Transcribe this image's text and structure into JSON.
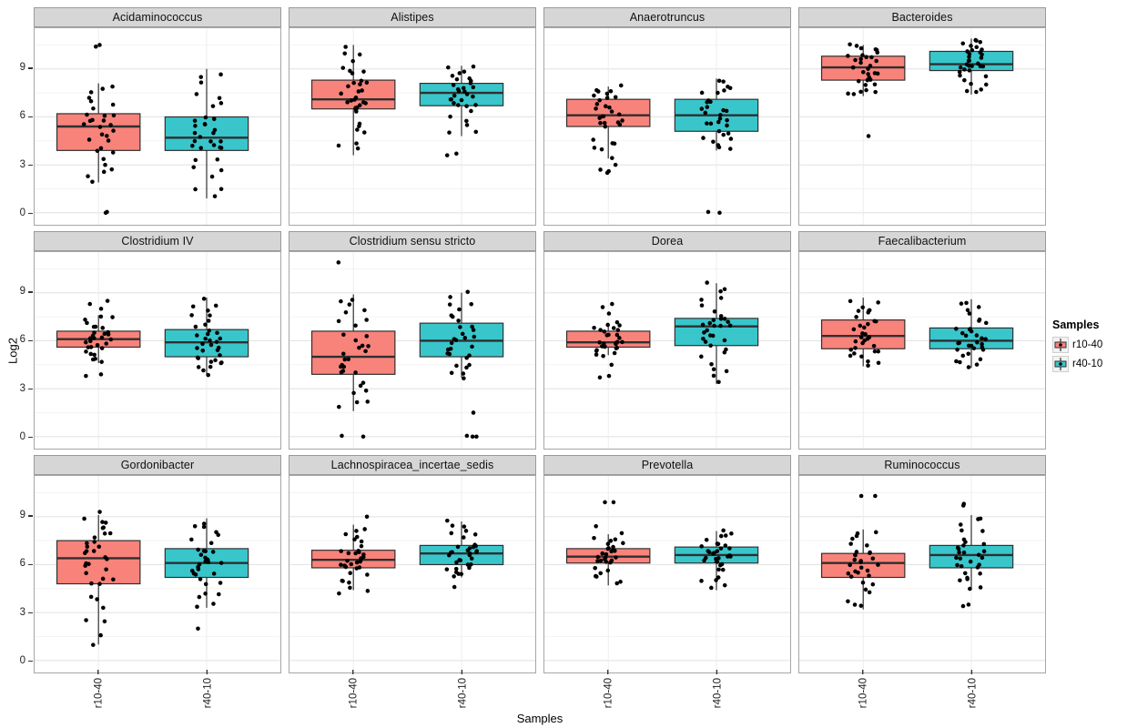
{
  "figure": {
    "y_axis_title": "Log2",
    "x_axis_title": "Samples",
    "legend": {
      "title": "Samples",
      "entries": [
        {
          "label": "r10-40",
          "color": "#F8837B"
        },
        {
          "label": "r40-10",
          "color": "#38C6CB"
        }
      ]
    }
  },
  "chart_data": {
    "type": "boxplot-faceted",
    "facet_rows": 3,
    "facet_cols": 4,
    "x_categories": [
      "r10-40",
      "r40-10"
    ],
    "series_colors": {
      "r10-40": "#F8837B",
      "r40-10": "#38C6CB"
    },
    "point_color": "#000000",
    "ylabel": "Log2",
    "xlabel": "Samples",
    "y_ticks": [
      0,
      3,
      6,
      9
    ],
    "y_minor_ticks": [
      1.5,
      4.5,
      7.5,
      10.5
    ],
    "ylim": [
      -0.75,
      11.55
    ],
    "grid": true,
    "legend_position": "right",
    "facets": [
      {
        "title": "Acidaminococcus",
        "groups": [
          {
            "name": "r10-40",
            "whisker_low": 1.9,
            "q1": 3.9,
            "median": 5.4,
            "q3": 6.2,
            "whisker_high": 8.1,
            "outliers": [
              10.5,
              10.4,
              0,
              0.05
            ],
            "n_points": 30
          },
          {
            "name": "r40-10",
            "whisker_low": 0.9,
            "q1": 3.9,
            "median": 4.7,
            "q3": 6.0,
            "whisker_high": 9.0,
            "outliers": [],
            "n_points": 33
          }
        ]
      },
      {
        "title": "Alistipes",
        "groups": [
          {
            "name": "r10-40",
            "whisker_low": 3.6,
            "q1": 6.5,
            "median": 7.1,
            "q3": 8.3,
            "whisker_high": 10.5,
            "outliers": [],
            "n_points": 34
          },
          {
            "name": "r40-10",
            "whisker_low": 4.8,
            "q1": 6.7,
            "median": 7.5,
            "q3": 8.1,
            "whisker_high": 9.2,
            "outliers": [
              3.7,
              3.6
            ],
            "n_points": 31
          }
        ]
      },
      {
        "title": "Anaerotruncus",
        "groups": [
          {
            "name": "r10-40",
            "whisker_low": 3.4,
            "q1": 5.4,
            "median": 6.1,
            "q3": 7.1,
            "whisker_high": 7.9,
            "outliers": [
              3.0,
              2.7,
              2.6,
              2.5
            ],
            "n_points": 30
          },
          {
            "name": "r40-10",
            "whisker_low": 3.9,
            "q1": 5.1,
            "median": 6.1,
            "q3": 7.1,
            "whisker_high": 8.4,
            "outliers": [
              0,
              0.05
            ],
            "n_points": 31
          }
        ]
      },
      {
        "title": "Bacteroides",
        "groups": [
          {
            "name": "r10-40",
            "whisker_low": 7.3,
            "q1": 8.3,
            "median": 9.1,
            "q3": 9.8,
            "whisker_high": 10.5,
            "outliers": [
              4.8
            ],
            "n_points": 33
          },
          {
            "name": "r40-10",
            "whisker_low": 7.4,
            "q1": 8.9,
            "median": 9.3,
            "q3": 10.1,
            "whisker_high": 10.9,
            "outliers": [],
            "n_points": 34
          }
        ]
      },
      {
        "title": "Clostridium IV",
        "groups": [
          {
            "name": "r10-40",
            "whisker_low": 4.6,
            "q1": 5.6,
            "median": 6.1,
            "q3": 6.6,
            "whisker_high": 7.6,
            "outliers": [
              8.5,
              8.3,
              8.0,
              3.9,
              3.8
            ],
            "n_points": 29
          },
          {
            "name": "r40-10",
            "whisker_low": 3.9,
            "q1": 5.0,
            "median": 5.9,
            "q3": 6.7,
            "whisker_high": 8.7,
            "outliers": [],
            "n_points": 34
          }
        ]
      },
      {
        "title": "Clostridium sensu stricto",
        "groups": [
          {
            "name": "r10-40",
            "whisker_low": 1.6,
            "q1": 3.9,
            "median": 5.0,
            "q3": 6.6,
            "whisker_high": 8.9,
            "outliers": [
              10.9,
              0,
              0.05
            ],
            "n_points": 31
          },
          {
            "name": "r40-10",
            "whisker_low": 3.7,
            "q1": 5.0,
            "median": 6.0,
            "q3": 7.1,
            "whisker_high": 9.0,
            "outliers": [
              1.5,
              0,
              0,
              0.05
            ],
            "n_points": 30
          }
        ]
      },
      {
        "title": "Dorea",
        "groups": [
          {
            "name": "r10-40",
            "whisker_low": 5.1,
            "q1": 5.6,
            "median": 5.9,
            "q3": 6.6,
            "whisker_high": 7.1,
            "outliers": [
              8.3,
              8.1,
              7.7,
              4.5,
              3.8,
              3.7
            ],
            "n_points": 28
          },
          {
            "name": "r40-10",
            "whisker_low": 3.3,
            "q1": 5.7,
            "median": 6.9,
            "q3": 7.4,
            "whisker_high": 9.6,
            "outliers": [],
            "n_points": 33
          }
        ]
      },
      {
        "title": "Faecalibacterium",
        "groups": [
          {
            "name": "r10-40",
            "whisker_low": 4.4,
            "q1": 5.5,
            "median": 6.3,
            "q3": 7.3,
            "whisker_high": 8.7,
            "outliers": [],
            "n_points": 33
          },
          {
            "name": "r40-10",
            "whisker_low": 4.3,
            "q1": 5.5,
            "median": 6.0,
            "q3": 6.8,
            "whisker_high": 8.6,
            "outliers": [],
            "n_points": 34
          }
        ]
      },
      {
        "title": "Gordonibacter",
        "groups": [
          {
            "name": "r10-40",
            "whisker_low": 1.0,
            "q1": 4.8,
            "median": 6.4,
            "q3": 7.5,
            "whisker_high": 9.1,
            "outliers": [
              9.3
            ],
            "n_points": 33
          },
          {
            "name": "r40-10",
            "whisker_low": 3.3,
            "q1": 5.2,
            "median": 6.1,
            "q3": 7.0,
            "whisker_high": 8.9,
            "outliers": [
              2.0
            ],
            "n_points": 32
          }
        ]
      },
      {
        "title": "Lachnospiracea_incertae_sedis",
        "groups": [
          {
            "name": "r10-40",
            "whisker_low": 4.4,
            "q1": 5.8,
            "median": 6.3,
            "q3": 6.9,
            "whisker_high": 8.5,
            "outliers": [
              9.0,
              4.2
            ],
            "n_points": 32
          },
          {
            "name": "r40-10",
            "whisker_low": 5.2,
            "q1": 6.0,
            "median": 6.7,
            "q3": 7.2,
            "whisker_high": 8.7,
            "outliers": [
              4.6
            ],
            "n_points": 33
          }
        ]
      },
      {
        "title": "Prevotella",
        "groups": [
          {
            "name": "r10-40",
            "whisker_low": 4.7,
            "q1": 6.1,
            "median": 6.5,
            "q3": 7.0,
            "whisker_high": 7.9,
            "outliers": [
              9.9,
              9.9,
              8.4
            ],
            "n_points": 30
          },
          {
            "name": "r40-10",
            "whisker_low": 4.4,
            "q1": 6.1,
            "median": 6.6,
            "q3": 7.1,
            "whisker_high": 8.1,
            "outliers": [],
            "n_points": 34
          }
        ]
      },
      {
        "title": "Ruminococcus",
        "groups": [
          {
            "name": "r10-40",
            "whisker_low": 3.2,
            "q1": 5.2,
            "median": 6.1,
            "q3": 6.7,
            "whisker_high": 8.2,
            "outliers": [
              10.3,
              10.3
            ],
            "n_points": 31
          },
          {
            "name": "r40-10",
            "whisker_low": 4.4,
            "q1": 5.8,
            "median": 6.6,
            "q3": 7.2,
            "whisker_high": 9.1,
            "outliers": [
              9.8,
              9.7,
              3.5,
              3.4
            ],
            "n_points": 30
          }
        ]
      }
    ]
  }
}
